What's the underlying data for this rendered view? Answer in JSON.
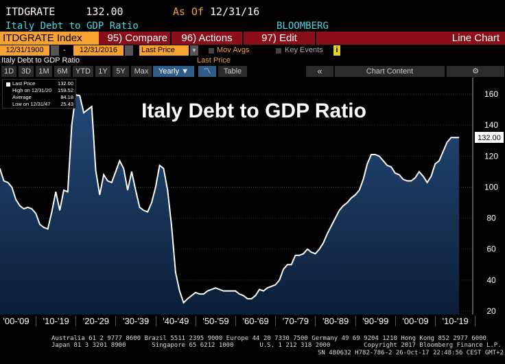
{
  "header": {
    "ticker": "ITDGRATE",
    "value": "132.00",
    "as_of_label": "As Of",
    "as_of_date": "12/31/16",
    "name": "Italy Debt to GDP Ratio",
    "source": "BLOOMBERG"
  },
  "menubar": {
    "security": "ITDGRATE Index",
    "compare": "95) Compare",
    "actions": "96) Actions",
    "edit": "97) Edit",
    "chart_type": "Line Chart"
  },
  "controls": {
    "start_date": "12/31/1900",
    "dash": "-",
    "end_date": "12/31/2016",
    "field": "Last Price",
    "mov_avgs": "Mov Avgs",
    "key_events": "Key Events",
    "info": "i"
  },
  "subtitle": {
    "left": "Italy Debt to GDP Ratio",
    "center": "Last Price"
  },
  "toolbar": {
    "periods": [
      "1D",
      "3D",
      "1M",
      "6M",
      "YTD",
      "1Y",
      "5Y",
      "Max"
    ],
    "frequency": "Yearly ▼",
    "table": "Table",
    "collapse": "«",
    "chart_content": "Chart Content",
    "settings": "⚙"
  },
  "legend": [
    {
      "label": "Last Price",
      "value": "132.00"
    },
    {
      "label": "High on 12/31/20",
      "value": "159.52"
    },
    {
      "label": "Average",
      "value": "84.18"
    },
    {
      "label": "Low on 12/31/47",
      "value": "25.43"
    }
  ],
  "chart_data": {
    "type": "area",
    "title": "Italy Debt to GDP Ratio",
    "ylim": [
      20,
      170
    ],
    "yticks": [
      20,
      40,
      60,
      80,
      100,
      120,
      140,
      160
    ],
    "last_value_label": "132.00",
    "xtick_labels": [
      "'00-'09",
      "'10-'19",
      "'20-'29",
      "'30-'39",
      "'40-'49",
      "'50-'59",
      "'60-'69",
      "'70-'79",
      "'80-'89",
      "'90-'99",
      "'00-'09",
      "'10-'19"
    ],
    "x_start": 1901,
    "values": [
      112,
      104,
      103,
      100,
      92,
      88,
      86,
      87,
      86,
      83,
      76,
      74,
      73,
      84,
      97,
      85,
      98,
      97,
      140,
      159.52,
      159,
      148,
      150,
      152,
      111,
      95,
      108,
      104,
      103,
      110,
      117,
      112,
      98,
      110,
      98,
      87,
      85,
      84,
      90,
      100,
      114,
      112,
      98,
      75,
      45,
      33,
      25.43,
      28,
      30,
      32,
      31,
      31,
      33,
      34,
      35,
      34,
      33,
      33,
      33,
      33,
      31,
      30,
      28,
      28,
      30,
      34,
      33,
      35,
      36,
      37,
      40,
      47,
      50,
      50,
      56,
      56,
      57,
      60,
      58,
      57,
      60,
      64,
      70,
      75,
      80,
      85,
      88,
      90,
      93,
      95,
      98,
      105,
      115,
      121,
      121,
      120,
      117,
      114,
      113,
      109,
      108,
      105,
      104,
      104,
      106,
      110,
      107,
      103,
      107,
      115,
      117,
      123,
      129,
      132,
      132,
      132
    ]
  },
  "footer": {
    "line1": "Australia 61 2 9777 8600 Brazil 5511 2395 9000 Europe 44 20 7330 7500 Germany 49 69 9204 1210 Hong Kong 852 2977 6000",
    "line2": "Japan 81 3 3201 8900       Singapore 65 6212 1000       U.S. 1 212 318 2000         Copyright 2017 Bloomberg Finance L.P.",
    "line3": "SN 480632 H782-786-2 26-Oct-17 22:48:56 CEST GMT+2:00"
  }
}
